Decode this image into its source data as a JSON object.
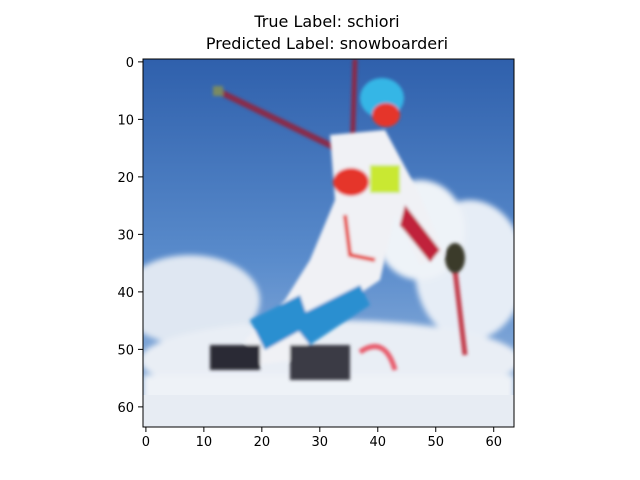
{
  "title": {
    "line1": "True Label: schiori",
    "line2": "Predicted Label: snowboarderi"
  },
  "image": {
    "description_colors": {
      "sky": "#3b6fb8",
      "snow": "#e9eef5",
      "suit_white": "#f2f2f4",
      "suit_red": "#e5352a",
      "suit_blue": "#2a8fd0",
      "helmet_cyan": "#35b6e6",
      "bib_yellow": "#c9e830",
      "pole_maroon": "#8a2a4a"
    }
  },
  "axes": {
    "x_ticks": [
      "0",
      "10",
      "20",
      "30",
      "40",
      "50",
      "60"
    ],
    "y_ticks": [
      "0",
      "10",
      "20",
      "30",
      "40",
      "50",
      "60"
    ],
    "xlim": [
      -0.5,
      63.5
    ],
    "ylim": [
      63.5,
      -0.5
    ]
  }
}
